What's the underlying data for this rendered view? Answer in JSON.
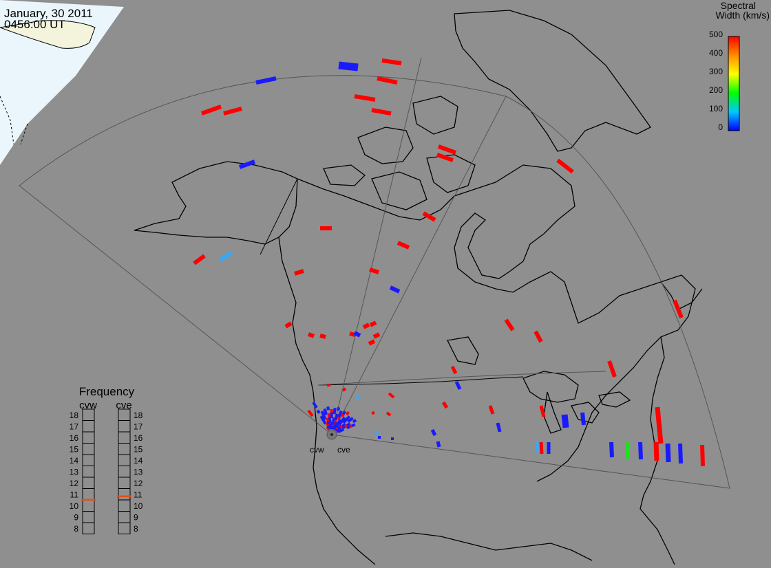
{
  "header": {
    "date": "January, 30 2011",
    "time": "0456:00 UT"
  },
  "legend": {
    "title_line1": "Spectral",
    "title_line2": "Width (km/s)",
    "ticks": [
      "500",
      "400",
      "300",
      "200",
      "100",
      "0"
    ],
    "colors": [
      "#ff0000",
      "#ff8c00",
      "#ffff00",
      "#00ff00",
      "#00c8ff",
      "#0000ff"
    ]
  },
  "frequency": {
    "title": "Frequency",
    "radars": [
      {
        "name": "cvw",
        "selected_mhz": 10.5
      },
      {
        "name": "cve",
        "selected_mhz": 10.8
      }
    ],
    "levels": [
      "18",
      "17",
      "16",
      "15",
      "14",
      "13",
      "12",
      "11",
      "10",
      "9",
      "8"
    ],
    "marker_color": "#e0501a"
  },
  "sites": [
    {
      "name": "cvw"
    },
    {
      "name": "cve"
    }
  ],
  "colors": {
    "background": "#8f8f8f",
    "land_outline": "#000000",
    "night_cap": "#eaf6fb",
    "high_width": "#ff0000",
    "low_width": "#1a1aff",
    "mid_width": "#33aaff",
    "green": "#22dd22"
  }
}
